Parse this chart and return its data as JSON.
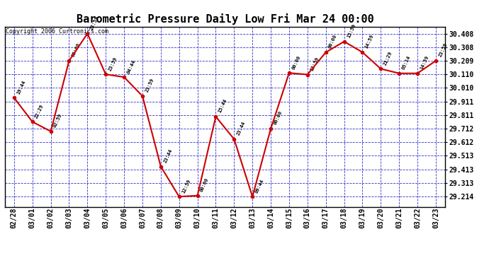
{
  "title": "Barometric Pressure Daily Low Fri Mar 24 00:00",
  "copyright": "Copyright 2006 Curtronics.com",
  "fig_bg_color": "#ffffff",
  "plot_bg_color": "#ffffff",
  "grid_color": "#0000bb",
  "line_color": "#cc0000",
  "marker_color": "#cc0000",
  "text_color": "#000000",
  "points": [
    {
      "date": "2006-02-28",
      "value": 29.938,
      "label": "19:44"
    },
    {
      "date": "2006-03-01",
      "value": 29.762,
      "label": "22:29"
    },
    {
      "date": "2006-03-02",
      "value": 29.692,
      "label": "02:59"
    },
    {
      "date": "2006-03-03",
      "value": 30.209,
      "label": "00:00"
    },
    {
      "date": "2006-03-04",
      "value": 30.408,
      "label": "23:59"
    },
    {
      "date": "2006-03-05",
      "value": 30.11,
      "label": "23:59"
    },
    {
      "date": "2006-03-06",
      "value": 30.089,
      "label": "04:44"
    },
    {
      "date": "2006-03-07",
      "value": 29.951,
      "label": "23:59"
    },
    {
      "date": "2006-03-08",
      "value": 29.435,
      "label": "23:44"
    },
    {
      "date": "2006-03-09",
      "value": 29.214,
      "label": "12:59"
    },
    {
      "date": "2006-03-10",
      "value": 29.221,
      "label": "00:00"
    },
    {
      "date": "2006-03-11",
      "value": 29.8,
      "label": "15:44"
    },
    {
      "date": "2006-03-12",
      "value": 29.635,
      "label": "23:44"
    },
    {
      "date": "2006-03-13",
      "value": 29.214,
      "label": "09:44"
    },
    {
      "date": "2006-03-14",
      "value": 29.712,
      "label": "00:00"
    },
    {
      "date": "2006-03-15",
      "value": 30.12,
      "label": "00:00"
    },
    {
      "date": "2006-03-16",
      "value": 30.108,
      "label": "13:59"
    },
    {
      "date": "2006-03-17",
      "value": 30.271,
      "label": "00:00"
    },
    {
      "date": "2006-03-18",
      "value": 30.35,
      "label": "15:59"
    },
    {
      "date": "2006-03-19",
      "value": 30.271,
      "label": "14:59"
    },
    {
      "date": "2006-03-20",
      "value": 30.15,
      "label": "21:29"
    },
    {
      "date": "2006-03-21",
      "value": 30.117,
      "label": "05:14"
    },
    {
      "date": "2006-03-22",
      "value": 30.117,
      "label": "14:59"
    },
    {
      "date": "2006-03-23",
      "value": 30.209,
      "label": "23:59"
    }
  ],
  "yticks": [
    29.214,
    29.313,
    29.413,
    29.513,
    29.612,
    29.712,
    29.811,
    29.911,
    30.01,
    30.11,
    30.209,
    30.308,
    30.408
  ],
  "ylim": [
    29.14,
    30.46
  ],
  "xtick_labels": [
    "02/28",
    "03/01",
    "03/02",
    "03/03",
    "03/04",
    "03/05",
    "03/06",
    "03/07",
    "03/08",
    "03/09",
    "03/10",
    "03/11",
    "03/12",
    "03/13",
    "03/14",
    "03/15",
    "03/16",
    "03/17",
    "03/18",
    "03/19",
    "03/20",
    "03/21",
    "03/22",
    "03/23"
  ],
  "title_fontsize": 11,
  "copyright_fontsize": 6,
  "label_fontsize": 5,
  "tick_fontsize": 7
}
